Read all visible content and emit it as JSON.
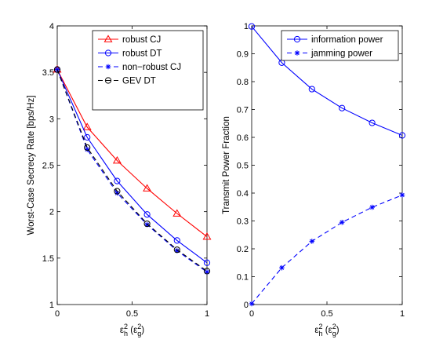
{
  "chart_data": [
    {
      "type": "line",
      "xlabel": "ε_h^2 (ε_g^2)",
      "ylabel": "Worst-Case Secrecy Rate [bps/Hz]",
      "xlim": [
        0,
        1
      ],
      "ylim": [
        1,
        4
      ],
      "xticks": [
        "0",
        "0.5",
        "1"
      ],
      "yticks": [
        "1",
        "1.5",
        "2",
        "2.5",
        "3",
        "3.5",
        "4"
      ],
      "legend_position": "top-right",
      "x": [
        0,
        0.2,
        0.4,
        0.6,
        0.8,
        1.0
      ],
      "series": [
        {
          "name": "robust CJ",
          "color": "#ff0000",
          "line": "solid",
          "marker": "triangle",
          "values": [
            3.53,
            2.91,
            2.55,
            2.25,
            1.98,
            1.73
          ]
        },
        {
          "name": "robust DT",
          "color": "#0000ff",
          "line": "solid",
          "marker": "circle",
          "values": [
            3.53,
            2.8,
            2.33,
            1.97,
            1.69,
            1.45
          ]
        },
        {
          "name": "non−robust CJ",
          "color": "#0000ff",
          "line": "dashed",
          "marker": "asterisk",
          "values": [
            3.53,
            2.67,
            2.2,
            1.86,
            1.58,
            1.35
          ]
        },
        {
          "name": "GEV DT",
          "color": "#000000",
          "line": "dashed",
          "marker": "circle",
          "values": [
            3.53,
            2.69,
            2.22,
            1.87,
            1.59,
            1.36
          ]
        }
      ]
    },
    {
      "type": "line",
      "xlabel": "ε_h^2 (ε_g^2)",
      "ylabel": "Transmit Power Fraction",
      "xlim": [
        0,
        1
      ],
      "ylim": [
        0,
        1
      ],
      "xticks": [
        "0",
        "0.5",
        "1"
      ],
      "yticks": [
        "0",
        "0.1",
        "0.2",
        "0.3",
        "0.4",
        "0.5",
        "0.6",
        "0.7",
        "0.8",
        "0.9",
        "1"
      ],
      "legend_position": "top-right",
      "x": [
        0,
        0.2,
        0.4,
        0.6,
        0.8,
        1.0
      ],
      "series": [
        {
          "name": "information power",
          "color": "#0000ff",
          "line": "solid",
          "marker": "circle",
          "values": [
            0.998,
            0.868,
            0.773,
            0.705,
            0.652,
            0.607
          ]
        },
        {
          "name": "jamming power",
          "color": "#0000ff",
          "line": "dashed",
          "marker": "asterisk",
          "values": [
            0.003,
            0.132,
            0.227,
            0.295,
            0.349,
            0.393
          ]
        }
      ]
    }
  ]
}
